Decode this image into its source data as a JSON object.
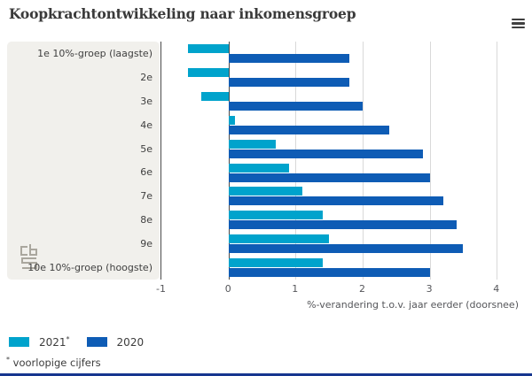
{
  "header": {
    "title": "Koopkrachtontwikkeling naar inkomensgroep"
  },
  "chart_data": {
    "type": "bar",
    "orientation": "horizontal",
    "title": "Koopkrachtontwikkeling naar inkomensgroep",
    "categories": [
      "1e 10%-groep (laagste)",
      "2e",
      "3e",
      "4e",
      "5e",
      "6e",
      "7e",
      "8e",
      "9e",
      "10e 10%-groep (hoogste)"
    ],
    "series": [
      {
        "name": "2021*",
        "color": "#00a3cc",
        "values": [
          -0.6,
          -0.6,
          -0.4,
          0.1,
          0.7,
          0.9,
          1.1,
          1.4,
          1.5,
          1.4
        ]
      },
      {
        "name": "2020",
        "color": "#0e5cb5",
        "values": [
          1.8,
          1.8,
          2.0,
          2.4,
          2.9,
          3.0,
          3.2,
          3.4,
          3.5,
          3.0
        ]
      }
    ],
    "xlabel": "%-verandering t.o.v. jaar eerder (doorsnee)",
    "xticks": [
      -1,
      0,
      1,
      2,
      3,
      4
    ],
    "xlim": [
      -1,
      4.38
    ],
    "gridlines": [
      1,
      2,
      3,
      4
    ],
    "zero_line": 0,
    "legend_position": "bottom-left"
  },
  "legend": {
    "items": [
      {
        "label": "2021",
        "marker": "*",
        "color": "#00a3cc"
      },
      {
        "label": "2020",
        "marker": "",
        "color": "#0e5cb5"
      }
    ]
  },
  "footnote": {
    "marker": "*",
    "text": "voorlopige cijfers"
  },
  "colors": {
    "accent_light_blue": "#00a3cc",
    "accent_dark_blue": "#0e5cb5",
    "panel_gray": "#f1f0ec",
    "axis_line": "#4a4a4a",
    "grid_line": "#d9d9d9",
    "footer_bar": "#16368f",
    "text": "#3c3c3c"
  }
}
